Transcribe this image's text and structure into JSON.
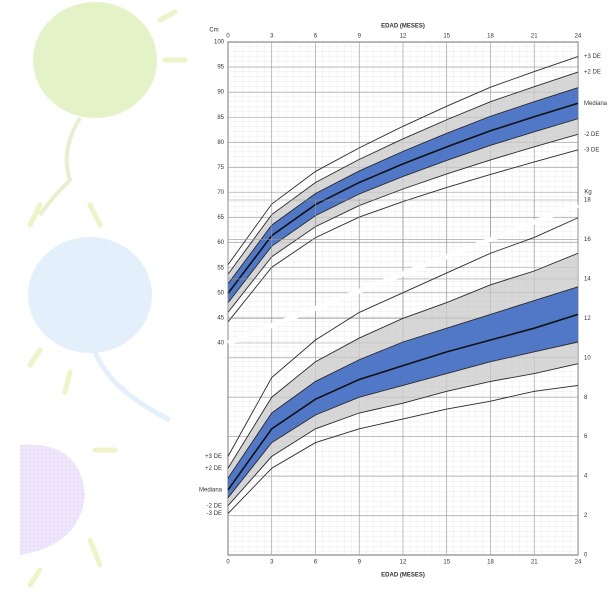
{
  "chart_data": [
    {
      "type": "line",
      "x_label": "EDAD (MESES)",
      "y_label": "Cm",
      "x": [
        0,
        3,
        6,
        9,
        12,
        15,
        18,
        21,
        24
      ],
      "xlim": [
        0,
        24
      ],
      "xticks": [
        0,
        3,
        6,
        9,
        12,
        15,
        18,
        21,
        24
      ],
      "ylim": [
        40,
        100
      ],
      "yticks": [
        40,
        45,
        50,
        55,
        60,
        65,
        70,
        75,
        80,
        85,
        90,
        95,
        100
      ],
      "band_colors": [
        "#c9c9c9",
        "#4a73c6"
      ],
      "series": [
        {
          "name": "+3 DE",
          "color": "#2a2a2a",
          "values": [
            55.6,
            67.7,
            74.2,
            78.9,
            83.2,
            87.2,
            91.0,
            94.1,
            97.1
          ]
        },
        {
          "name": "+2 DE",
          "color": "#2a2a2a",
          "values": [
            53.7,
            65.6,
            72.0,
            76.6,
            80.7,
            84.5,
            88.1,
            91.1,
            94.0
          ]
        },
        {
          "color": "#2a2a2a",
          "values": [
            51.8,
            63.5,
            69.8,
            74.3,
            78.2,
            81.8,
            85.2,
            88.1,
            90.9
          ]
        },
        {
          "name": "Mediana",
          "color": "#111111",
          "values": [
            49.9,
            61.4,
            67.6,
            72.0,
            75.7,
            79.1,
            82.3,
            85.1,
            87.8
          ]
        },
        {
          "color": "#2a2a2a",
          "values": [
            48.0,
            59.3,
            65.4,
            69.7,
            73.2,
            76.4,
            79.4,
            82.1,
            84.7
          ]
        },
        {
          "name": "-2 DE",
          "color": "#2a2a2a",
          "values": [
            46.1,
            57.2,
            63.2,
            67.4,
            70.7,
            73.7,
            76.5,
            79.1,
            81.6
          ]
        },
        {
          "name": "-3 DE",
          "color": "#2a2a2a",
          "values": [
            44.2,
            55.1,
            61.0,
            65.1,
            68.2,
            71.0,
            73.6,
            76.1,
            78.5
          ]
        }
      ]
    },
    {
      "type": "line",
      "x_label": "EDAD (MESES)",
      "y_label": "Kg",
      "x": [
        0,
        3,
        6,
        9,
        12,
        15,
        18,
        21,
        24
      ],
      "xlim": [
        0,
        24
      ],
      "xticks": [
        0,
        3,
        6,
        9,
        12,
        15,
        18,
        21,
        24
      ],
      "ylim": [
        0,
        18
      ],
      "yticks": [
        0,
        2,
        4,
        6,
        8,
        10,
        12,
        14,
        16,
        18
      ],
      "band_colors": [
        "#c9c9c9",
        "#4a73c6"
      ],
      "series": [
        {
          "name": "+3 DE",
          "color": "#2a2a2a",
          "values": [
            5.0,
            9.0,
            10.9,
            12.3,
            13.3,
            14.3,
            15.3,
            16.1,
            17.1
          ]
        },
        {
          "name": "+2 DE",
          "color": "#2a2a2a",
          "values": [
            4.4,
            8.0,
            9.8,
            11.0,
            12.0,
            12.8,
            13.7,
            14.4,
            15.3
          ]
        },
        {
          "color": "#2a2a2a",
          "values": [
            3.9,
            7.2,
            8.8,
            9.9,
            10.8,
            11.5,
            12.2,
            12.9,
            13.6
          ]
        },
        {
          "name": "Mediana",
          "color": "#111111",
          "values": [
            3.3,
            6.4,
            7.9,
            8.9,
            9.6,
            10.3,
            10.9,
            11.5,
            12.2
          ]
        },
        {
          "color": "#2a2a2a",
          "values": [
            2.9,
            5.7,
            7.1,
            8.0,
            8.6,
            9.2,
            9.8,
            10.3,
            10.8
          ]
        },
        {
          "name": "-2 DE",
          "color": "#2a2a2a",
          "values": [
            2.5,
            5.0,
            6.4,
            7.2,
            7.7,
            8.3,
            8.8,
            9.2,
            9.7
          ]
        },
        {
          "name": "-3 DE",
          "color": "#2a2a2a",
          "values": [
            2.1,
            4.4,
            5.7,
            6.4,
            6.9,
            7.4,
            7.8,
            8.3,
            8.6
          ]
        }
      ]
    }
  ]
}
